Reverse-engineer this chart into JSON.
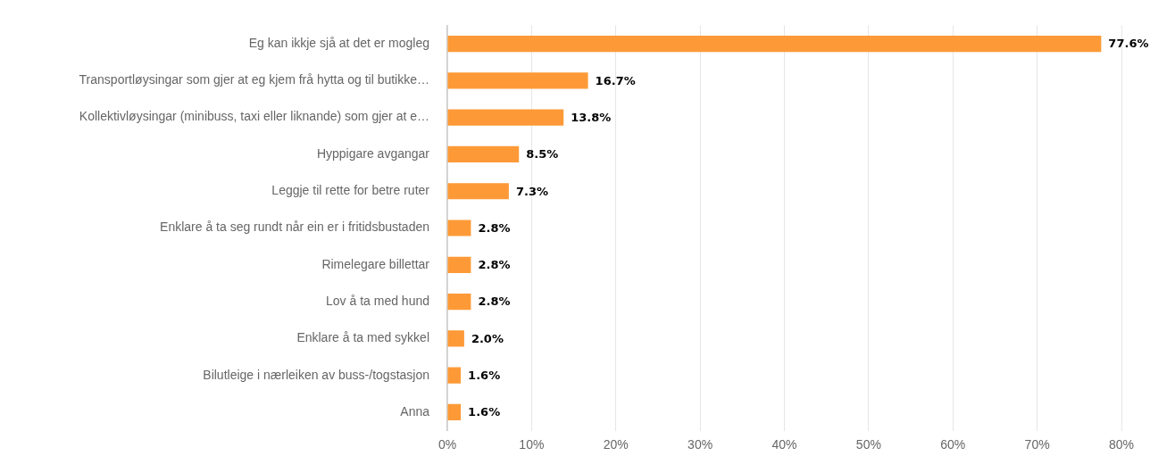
{
  "chart_data": {
    "type": "bar",
    "orientation": "horizontal",
    "categories": [
      "Eg kan ikkje sjå at det er mogleg",
      "Transportløysingar som gjer at eg kjem frå hytta og til butikke…",
      "Kollektivløysingar (minibuss, taxi eller liknande) som gjer at e…",
      "Hyppigare avgangar",
      "Leggje til rette for betre ruter",
      "Enklare å ta seg rundt når ein er i fritidsbustaden",
      "Rimelegare billettar",
      "Lov å ta med hund",
      "Enklare å ta med sykkel",
      "Bilutleige i nærleiken av buss-/togstasjon",
      "Anna"
    ],
    "values": [
      77.6,
      16.7,
      13.8,
      8.5,
      7.3,
      2.8,
      2.8,
      2.8,
      2.0,
      1.6,
      1.6
    ],
    "value_labels": [
      "77.6%",
      "16.7%",
      "13.8%",
      "8.5%",
      "7.3%",
      "2.8%",
      "2.8%",
      "2.8%",
      "2.0%",
      "1.6%",
      "1.6%"
    ],
    "color": "#fd9a37",
    "xlim": [
      0,
      80
    ],
    "xticks": [
      {
        "value": 0,
        "label": "0%"
      },
      {
        "value": 10,
        "label": "10%"
      },
      {
        "value": 20,
        "label": "20%"
      },
      {
        "value": 30,
        "label": "30%"
      },
      {
        "value": 40,
        "label": "40%"
      },
      {
        "value": 50,
        "label": "50%"
      },
      {
        "value": 60,
        "label": "60%"
      },
      {
        "value": 70,
        "label": "70%"
      },
      {
        "value": 80,
        "label": "80%"
      }
    ],
    "grid": "x"
  }
}
